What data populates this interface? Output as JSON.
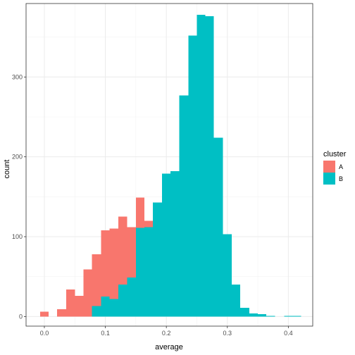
{
  "chart_data": {
    "type": "bar",
    "subtype": "stacked-histogram",
    "xlabel": "average",
    "ylabel": "count",
    "xlim": [
      -0.03,
      0.44
    ],
    "ylim": [
      -12,
      392
    ],
    "x_ticks": [
      0.0,
      0.1,
      0.2,
      0.3,
      0.4
    ],
    "x_tick_labels": [
      "0.0",
      "0.1",
      "0.2",
      "0.3",
      "0.4"
    ],
    "y_ticks": [
      0,
      100,
      200,
      300
    ],
    "y_tick_labels": [
      "0",
      "100",
      "200",
      "300"
    ],
    "grid": true,
    "legend_position": "right",
    "legend": {
      "title": "cluster",
      "entries": [
        {
          "label": "A",
          "color": "#F8766D"
        },
        {
          "label": "B",
          "color": "#00BFC4"
        }
      ]
    },
    "bins": [
      {
        "x0": -0.007,
        "x1": 0.007,
        "A": 6,
        "B": 0
      },
      {
        "x0": 0.007,
        "x1": 0.021,
        "A": 0,
        "B": 0
      },
      {
        "x0": 0.021,
        "x1": 0.036,
        "A": 9,
        "B": 0
      },
      {
        "x0": 0.036,
        "x1": 0.05,
        "A": 34,
        "B": 0
      },
      {
        "x0": 0.05,
        "x1": 0.064,
        "A": 26,
        "B": 0
      },
      {
        "x0": 0.064,
        "x1": 0.078,
        "A": 59,
        "B": 0
      },
      {
        "x0": 0.078,
        "x1": 0.093,
        "A": 65,
        "B": 13
      },
      {
        "x0": 0.093,
        "x1": 0.107,
        "A": 83,
        "B": 25
      },
      {
        "x0": 0.107,
        "x1": 0.121,
        "A": 88,
        "B": 22
      },
      {
        "x0": 0.121,
        "x1": 0.136,
        "A": 85,
        "B": 40
      },
      {
        "x0": 0.136,
        "x1": 0.15,
        "A": 63,
        "B": 49
      },
      {
        "x0": 0.15,
        "x1": 0.164,
        "A": 38,
        "B": 111
      },
      {
        "x0": 0.164,
        "x1": 0.178,
        "A": 8,
        "B": 112
      },
      {
        "x0": 0.178,
        "x1": 0.193,
        "A": 0,
        "B": 143
      },
      {
        "x0": 0.193,
        "x1": 0.207,
        "A": 0,
        "B": 179
      },
      {
        "x0": 0.207,
        "x1": 0.221,
        "A": 0,
        "B": 182
      },
      {
        "x0": 0.221,
        "x1": 0.236,
        "A": 0,
        "B": 277
      },
      {
        "x0": 0.236,
        "x1": 0.25,
        "A": 0,
        "B": 352
      },
      {
        "x0": 0.25,
        "x1": 0.264,
        "A": 0,
        "B": 378
      },
      {
        "x0": 0.264,
        "x1": 0.278,
        "A": 0,
        "B": 376
      },
      {
        "x0": 0.278,
        "x1": 0.293,
        "A": 0,
        "B": 224
      },
      {
        "x0": 0.293,
        "x1": 0.307,
        "A": 0,
        "B": 103
      },
      {
        "x0": 0.307,
        "x1": 0.321,
        "A": 0,
        "B": 40
      },
      {
        "x0": 0.321,
        "x1": 0.336,
        "A": 0,
        "B": 11
      },
      {
        "x0": 0.336,
        "x1": 0.35,
        "A": 0,
        "B": 4
      },
      {
        "x0": 0.35,
        "x1": 0.364,
        "A": 0,
        "B": 3
      },
      {
        "x0": 0.364,
        "x1": 0.378,
        "A": 0,
        "B": 1
      },
      {
        "x0": 0.378,
        "x1": 0.393,
        "A": 0,
        "B": 0
      },
      {
        "x0": 0.393,
        "x1": 0.407,
        "A": 0,
        "B": 1
      },
      {
        "x0": 0.407,
        "x1": 0.421,
        "A": 0,
        "B": 1
      }
    ]
  }
}
